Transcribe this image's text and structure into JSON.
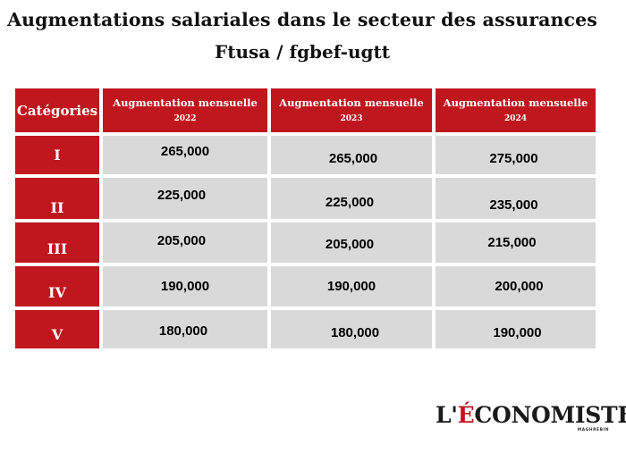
{
  "title": "Augmentations salariales dans le secteur des assurances",
  "subtitle": "Ftusa / fgbef-ugtt",
  "table": {
    "corner_header": "Catégories",
    "columns": [
      {
        "line1": "Augmentation mensuelle",
        "year": "2022"
      },
      {
        "line1": "Augmentation mensuelle",
        "year": "2023"
      },
      {
        "line1": "Augmentation mensuelle",
        "year": "2024"
      }
    ],
    "rows": [
      {
        "category": "I",
        "values": [
          "265,000",
          "265,000",
          "275,000"
        ]
      },
      {
        "category": "II",
        "values": [
          "225,000",
          "225,000",
          "235,000"
        ]
      },
      {
        "category": "III",
        "values": [
          "205,000",
          "205,000",
          "215,000"
        ]
      },
      {
        "category": "IV",
        "values": [
          "190,000",
          "190,000",
          "200,000"
        ]
      },
      {
        "category": "V",
        "values": [
          "180,000",
          "180,000",
          "190,000"
        ]
      }
    ]
  },
  "logo": {
    "prefix": "L'",
    "accent": "É",
    "rest": "CONOMISTE",
    "sub": "MAGHRÉBIN"
  },
  "colors": {
    "header_red": "#c0161e",
    "cell_gray": "#d9d9d9"
  }
}
